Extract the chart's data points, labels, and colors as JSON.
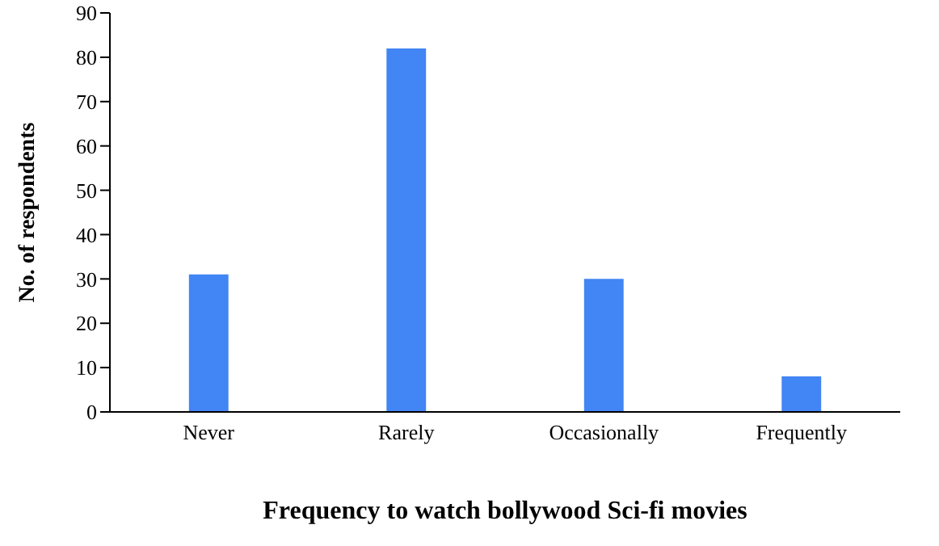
{
  "chart_data": {
    "type": "bar",
    "xlabel": "Frequency to watch bollywood Sci-fi movies",
    "ylabel": "No. of respondents",
    "categories": [
      "Never",
      "Rarely",
      "Occasionally",
      "Frequently"
    ],
    "values": [
      31,
      82,
      30,
      8
    ],
    "color": "#4285f4",
    "ylim": [
      0,
      90
    ],
    "yticks": [
      0,
      10,
      20,
      30,
      40,
      50,
      60,
      70,
      80,
      90
    ],
    "grid": false,
    "legend": false
  }
}
